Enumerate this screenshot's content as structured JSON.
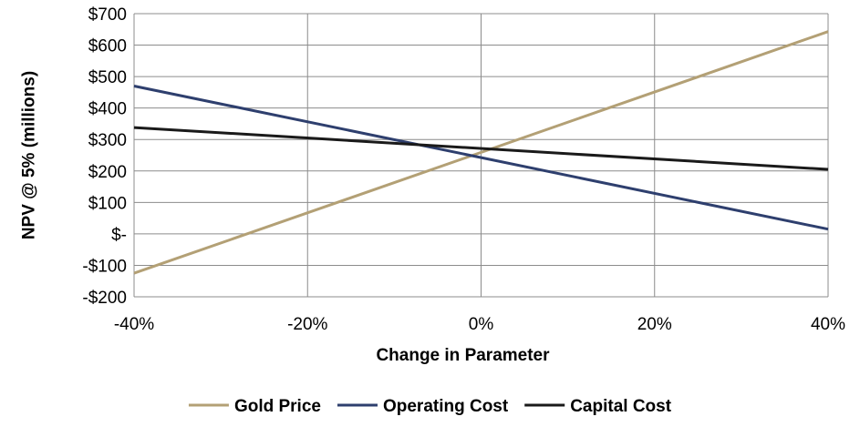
{
  "chart_data": {
    "type": "line",
    "title": "",
    "xlabel": "Change in Parameter",
    "ylabel": "NPV @ 5% (millions)",
    "x": [
      -40,
      40
    ],
    "xlim": [
      -40,
      40
    ],
    "ylim": [
      -200,
      700
    ],
    "x_ticks": [
      -40,
      -20,
      0,
      20,
      40
    ],
    "x_tick_labels": [
      "-40%",
      "-20%",
      "0%",
      "20%",
      "40%"
    ],
    "y_ticks": [
      -200,
      -100,
      0,
      100,
      200,
      300,
      400,
      500,
      600,
      700
    ],
    "y_tick_labels": [
      "-$200",
      "-$100",
      "$-",
      "$100",
      "$200",
      "$300",
      "$400",
      "$500",
      "$600",
      "$700"
    ],
    "grid": true,
    "legend_position": "bottom",
    "series": [
      {
        "name": "Gold Price",
        "color": "#b3a075",
        "values": [
          -125,
          643
        ]
      },
      {
        "name": "Operating Cost",
        "color": "#2e3f6e",
        "values": [
          470,
          15
        ]
      },
      {
        "name": "Capital Cost",
        "color": "#1a1a1a",
        "values": [
          338,
          205
        ]
      }
    ]
  }
}
